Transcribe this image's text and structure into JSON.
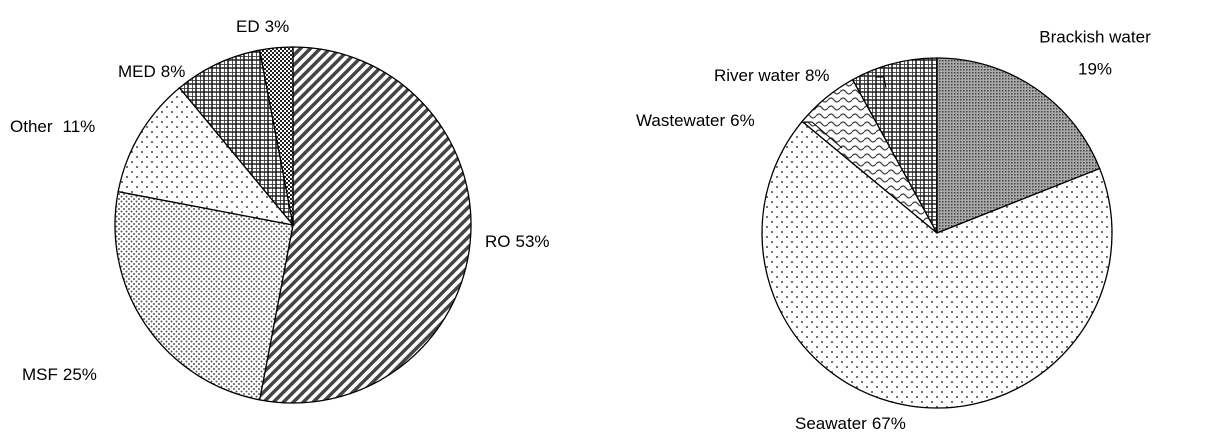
{
  "chart_data": [
    {
      "type": "pie",
      "categories": [
        "RO",
        "MSF",
        "Other",
        "MED",
        "ED"
      ],
      "values": [
        53,
        25,
        11,
        8,
        3
      ],
      "value_labels": [
        "53%",
        "25%",
        "11%",
        "8%",
        "3%"
      ]
    },
    {
      "type": "pie",
      "categories": [
        "Brackish water",
        "Seawater",
        "Wastewater",
        "River water"
      ],
      "values": [
        19,
        67,
        6,
        8
      ],
      "value_labels": [
        "19%",
        "67%",
        "6%",
        "8%"
      ]
    }
  ]
}
